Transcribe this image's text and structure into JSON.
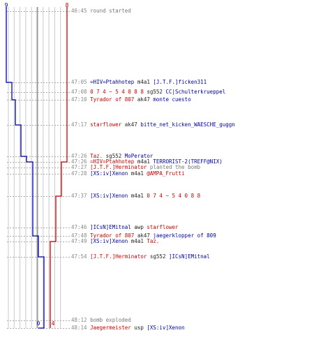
{
  "colors": {
    "red_team": "#cc0000",
    "blue_team": "#0000aa",
    "time": "#888888",
    "weapon": "#222222",
    "note": "#777777"
  },
  "graph": {
    "blue_start": "9",
    "red_start": "8",
    "blue_end": "0",
    "red_end": "4"
  },
  "events": [
    {
      "time": "46:45",
      "note": "round started"
    },
    {
      "time": "47:05",
      "killer": "=HIV=Ptahhotep",
      "killer_team": "b",
      "weapon": "m4a1",
      "victim": "[J.T.F.]ficken311",
      "victim_team": "b"
    },
    {
      "time": "47:08",
      "killer": "0 7 4 ~ 5 4 0 8 8",
      "killer_team": "r",
      "weapon": "sg552",
      "victim": "CC|Schulterkrueppel",
      "victim_team": "b"
    },
    {
      "time": "47:10",
      "killer": "Tyrador of 807",
      "killer_team": "r",
      "weapon": "ak47",
      "victim": "monte cuesto",
      "victim_team": "b"
    },
    {
      "time": "47:17",
      "killer": "starflower",
      "killer_team": "r",
      "weapon": "ak47",
      "victim": "bitte_net_kicken_WAESCHE_guggn",
      "victim_team": "b"
    },
    {
      "time": "47:26",
      "killer": "Taz.",
      "killer_team": "r",
      "weapon": "sg552",
      "victim": "MoPerator",
      "victim_team": "b"
    },
    {
      "time": "47:26",
      "killer": "=HIV=Ptahhotep",
      "killer_team": "r",
      "weapon": "m4a1",
      "victim": "TERRORIST-2(TREFF@NIX)",
      "victim_team": "b"
    },
    {
      "time": "47:27",
      "killer": "[J.T.F.]Herminator",
      "killer_team": "r",
      "note": "planted the bomb"
    },
    {
      "time": "47:28",
      "killer": "[XS:iv]Xenon",
      "killer_team": "b",
      "weapon": "m4a1",
      "victim": "@AMPA_Frutti",
      "victim_team": "r"
    },
    {
      "time": "47:37",
      "killer": "[XS:iv]Xenon",
      "killer_team": "b",
      "weapon": "m4a1",
      "victim": "0 7 4 ~ 5 4 0 8 8",
      "victim_team": "r"
    },
    {
      "time": "47:46",
      "killer": "]ICsN]EMitnal",
      "killer_team": "b",
      "weapon": "awp",
      "victim": "starflower",
      "victim_team": "r"
    },
    {
      "time": "47:48",
      "killer": "Tyrador of 807",
      "killer_team": "r",
      "weapon": "ak47",
      "victim": "jaegerklopper of 809",
      "victim_team": "b"
    },
    {
      "time": "47:49",
      "killer": "[XS:iv]Xenon",
      "killer_team": "b",
      "weapon": "m4a1",
      "victim": "Taz.",
      "victim_team": "r"
    },
    {
      "time": "47:54",
      "killer": "[J.T.F.]Herminator",
      "killer_team": "r",
      "weapon": "sg552",
      "victim": "]ICsN]EMitnal",
      "victim_team": "b"
    },
    {
      "time": "48:12",
      "note": "bomb exploded"
    },
    {
      "time": "48:14",
      "killer": "Jaegermeister",
      "killer_team": "r",
      "weapon": "usp",
      "victim": "[XS:iv]Xenon",
      "victim_team": "b"
    }
  ]
}
